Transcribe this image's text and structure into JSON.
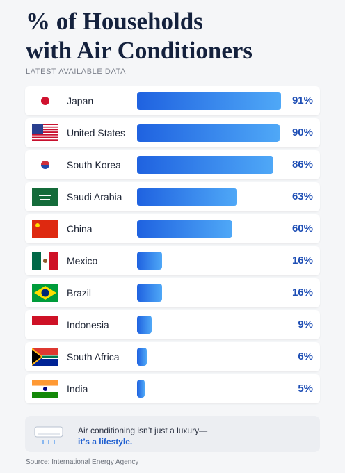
{
  "chart_data": {
    "type": "bar",
    "title": [
      "% of Households",
      "with Air Conditioners"
    ],
    "subtitle": "LATEST AVAILABLE DATA",
    "categories": [
      "Japan",
      "United States",
      "South Korea",
      "Saudi Arabia",
      "China",
      "Mexico",
      "Brazil",
      "Indonesia",
      "South Africa",
      "India"
    ],
    "values": [
      91,
      90,
      86,
      63,
      60,
      16,
      16,
      9,
      6,
      5
    ],
    "value_labels": [
      "91%",
      "90%",
      "86%",
      "63%",
      "60%",
      "16%",
      "16%",
      "9%",
      "6%",
      "5%"
    ],
    "color": "#1f62e0",
    "note": [
      "Air conditioning isn’t just a luxury—",
      "it’s a lifestyle."
    ],
    "source": "Source: International Energy Agency"
  }
}
